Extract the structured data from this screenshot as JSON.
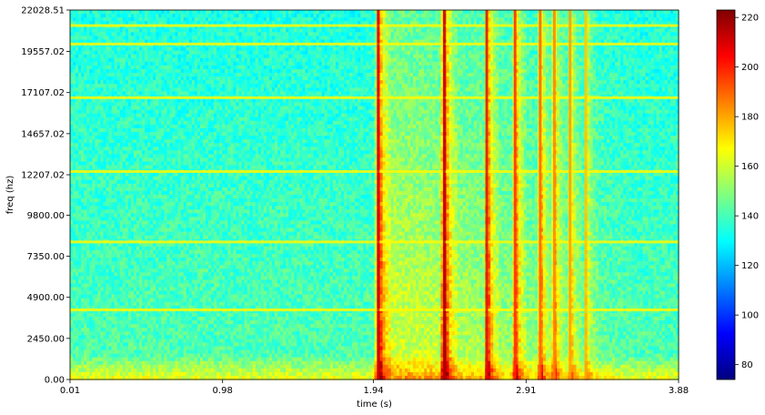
{
  "chart_data": {
    "type": "heatmap",
    "title": "",
    "xlabel": "time (s)",
    "ylabel": "freq (hz)",
    "xlim": [
      0.01,
      3.88
    ],
    "ylim": [
      0.0,
      22028.51
    ],
    "x_ticks": [
      "0.01",
      "0.98",
      "1.94",
      "2.91",
      "3.88"
    ],
    "y_ticks": [
      "0.00",
      "2450.00",
      "4900.00",
      "7350.00",
      "9800.00",
      "12207.02",
      "14657.02",
      "17107.02",
      "19557.02",
      "22028.51"
    ],
    "colorbar": {
      "colormap": "jet",
      "range": [
        74,
        223
      ],
      "ticks": [
        "80",
        "100",
        "120",
        "140",
        "160",
        "180",
        "200",
        "220"
      ]
    },
    "events": [
      {
        "time_s": 1.97,
        "level": 208
      },
      {
        "time_s": 2.39,
        "level": 214
      },
      {
        "time_s": 2.66,
        "level": 210
      },
      {
        "time_s": 2.84,
        "level": 200
      },
      {
        "time_s": 3.0,
        "level": 192
      },
      {
        "time_s": 3.09,
        "level": 186
      },
      {
        "time_s": 3.19,
        "level": 182
      },
      {
        "time_s": 3.29,
        "level": 176
      }
    ],
    "tonal_lines_hz": [
      20000,
      16800,
      12400,
      8200,
      4150,
      21100
    ],
    "background_level": 142,
    "low_freq_level": 165
  }
}
